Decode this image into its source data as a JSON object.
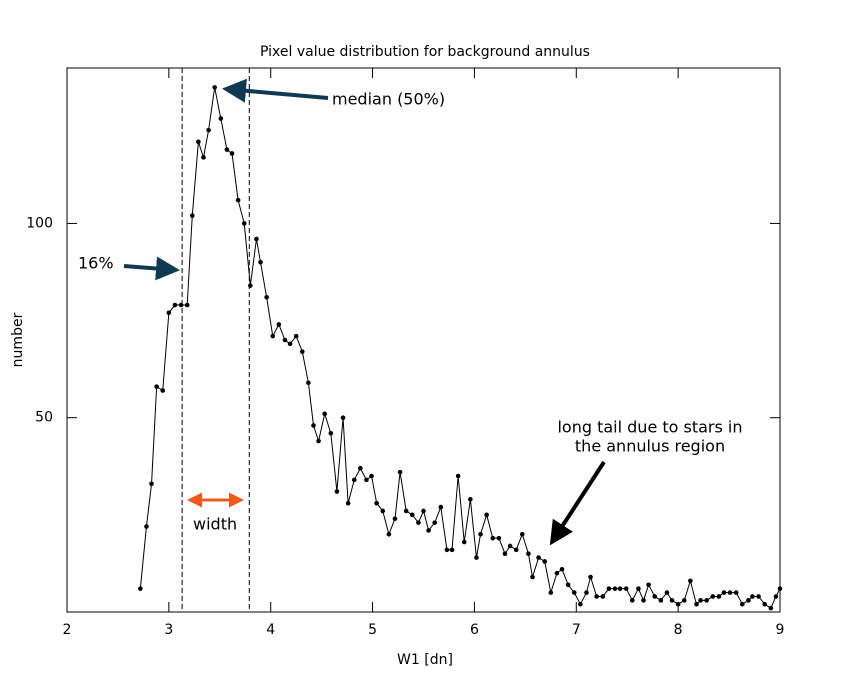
{
  "chart_data": {
    "type": "line",
    "title": "Pixel value distribution for background annulus",
    "x_label": "W1 [dn]",
    "y_label": "number",
    "x": [
      2.72,
      2.78,
      2.83,
      2.88,
      2.94,
      3.0,
      3.06,
      3.12,
      3.18,
      3.23,
      3.29,
      3.34,
      3.39,
      3.45,
      3.51,
      3.57,
      3.62,
      3.68,
      3.74,
      3.8,
      3.86,
      3.9,
      3.96,
      4.02,
      4.08,
      4.14,
      4.19,
      4.25,
      4.31,
      4.37,
      4.42,
      4.47,
      4.53,
      4.59,
      4.65,
      4.71,
      4.76,
      4.82,
      4.88,
      4.94,
      4.99,
      5.04,
      5.1,
      5.16,
      5.22,
      5.27,
      5.33,
      5.39,
      5.45,
      5.5,
      5.55,
      5.61,
      5.67,
      5.73,
      5.78,
      5.84,
      5.9,
      5.96,
      6.02,
      6.06,
      6.12,
      6.18,
      6.24,
      6.3,
      6.35,
      6.41,
      6.47,
      6.53,
      6.57,
      6.63,
      6.69,
      6.75,
      6.81,
      6.86,
      6.92,
      6.98,
      7.04,
      7.1,
      7.14,
      7.2,
      7.26,
      7.32,
      7.38,
      7.43,
      7.49,
      7.55,
      7.61,
      7.66,
      7.71,
      7.77,
      7.83,
      7.89,
      7.94,
      8.0,
      8.06,
      8.12,
      8.18,
      8.22,
      8.28,
      8.34,
      8.4,
      8.45,
      8.51,
      8.57,
      8.63,
      8.69,
      8.73,
      8.79,
      8.85,
      8.91,
      8.96,
      9.0
    ],
    "series": [
      {
        "name": "number",
        "color": "#000000",
        "values": [
          6,
          22,
          33,
          58,
          57,
          77,
          79,
          79,
          79,
          102,
          121,
          117,
          124,
          135,
          127,
          119,
          118,
          106,
          100,
          84,
          96,
          90,
          81,
          71,
          74,
          70,
          69,
          71,
          67,
          59,
          48,
          44,
          51,
          46,
          31,
          50,
          28,
          34,
          37,
          34,
          35,
          28,
          26,
          20,
          24,
          36,
          26,
          25,
          23,
          26,
          21,
          23,
          27,
          16,
          16,
          35,
          18,
          29,
          14,
          20,
          25,
          19,
          19,
          15,
          17,
          16,
          20,
          15,
          9,
          14,
          13,
          5,
          10,
          11,
          7,
          5,
          2,
          5,
          9,
          4,
          4,
          6,
          6,
          6,
          6,
          3,
          6,
          3,
          7,
          4,
          3,
          5,
          3,
          2,
          3,
          8,
          2,
          3,
          3,
          4,
          4,
          5,
          5,
          5,
          2,
          3,
          4,
          4,
          2,
          1,
          4,
          6
        ]
      }
    ],
    "xlim": [
      2,
      9
    ],
    "ylim": [
      0,
      140
    ],
    "xticks": [
      2,
      3,
      4,
      5,
      6,
      7,
      8,
      9
    ],
    "yticks": [
      50,
      100
    ],
    "vlines": [
      3.13,
      3.79
    ],
    "annotations": {
      "median": "median (50%)",
      "p16": "16%",
      "width": "width",
      "tail": [
        "long tail due to stars in",
        "the annulus region"
      ]
    }
  }
}
